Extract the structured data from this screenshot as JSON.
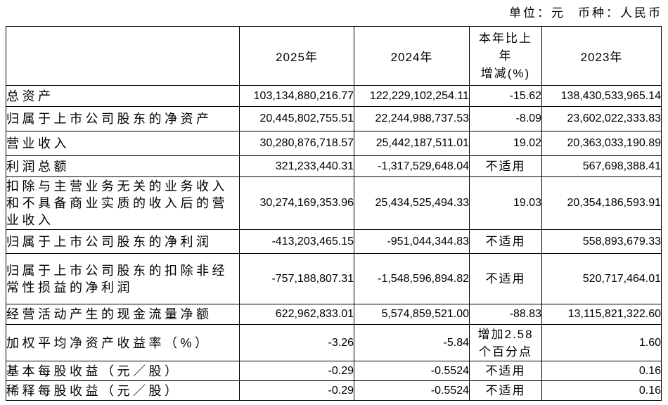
{
  "meta": {
    "unit_label": "单位：元",
    "currency_label": "币种：人民币"
  },
  "table": {
    "headers": {
      "col_label": "",
      "col_2025": "2025年",
      "col_2024": "2024年",
      "col_change": "本年比上\n年\n增减(%)",
      "col_2023": "2023年"
    },
    "rows": [
      {
        "label": "总资产",
        "y2025": "103,134,880,216.77",
        "y2024": "122,229,102,254.11",
        "change": "-15.62",
        "y2023": "138,430,533,965.14"
      },
      {
        "label": "归属于上市公司股东的净资产",
        "y2025": "20,445,802,755.51",
        "y2024": "22,244,988,737.53",
        "change": "-8.09",
        "y2023": "23,602,022,333.83"
      },
      {
        "label": "营业收入",
        "y2025": "30,280,876,718.57",
        "y2024": "25,442,187,511.01",
        "change": "19.02",
        "y2023": "20,363,033,190.89"
      },
      {
        "label": "利润总额",
        "y2025": "321,233,440.31",
        "y2024": "-1,317,529,648.04",
        "change": "不适用",
        "y2023": "567,698,388.41"
      },
      {
        "label": "扣除与主营业务无关的业务收入和不具备商业实质的收入后的营业收入",
        "y2025": "30,274,169,353.96",
        "y2024": "25,434,525,494.33",
        "change": "19.03",
        "y2023": "20,354,186,593.91"
      },
      {
        "label": "归属于上市公司股东的净利润",
        "y2025": "-413,203,465.15",
        "y2024": "-951,044,344.83",
        "change": "不适用",
        "y2023": "558,893,679.33"
      },
      {
        "label": "归属于上市公司股东的扣除非经常性损益的净利润",
        "y2025": "-757,188,807.31",
        "y2024": "-1,548,596,894.82",
        "change": "不适用",
        "y2023": "520,717,464.01"
      },
      {
        "label": "经营活动产生的现金流量净额",
        "y2025": "622,962,833.01",
        "y2024": "5,574,859,521.00",
        "change": "-88.83",
        "y2023": "13,115,821,322.60"
      },
      {
        "label": "加权平均净资产收益率（%）",
        "y2025": "-3.26",
        "y2024": "-5.84",
        "change": "增加2.58\n个百分点",
        "y2023": "1.60"
      },
      {
        "label": "基本每股收益（元／股）",
        "y2025": "-0.29",
        "y2024": "-0.5524",
        "change": "不适用",
        "y2023": "0.16"
      },
      {
        "label": "稀释每股收益（元／股）",
        "y2025": "-0.29",
        "y2024": "-0.5524",
        "change": "不适用",
        "y2023": "0.16"
      }
    ]
  }
}
